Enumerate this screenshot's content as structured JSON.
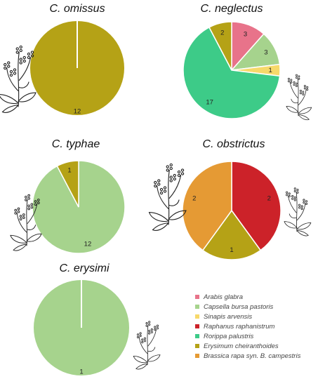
{
  "series_colors": {
    "Arabis glabra": "#e8738a",
    "Capsella bursa pastoris": "#a6d38d",
    "Sinapis arvensis": "#f7d96a",
    "Raphanus raphanistrum": "#cc2229",
    "Rorippa palustris": "#3dcb88",
    "Erysimum cheiranthoides": "#b5a216",
    "Brassica rapa syn. B. campestris": "#e59a34"
  },
  "legend": [
    "Arabis glabra",
    "Capsella bursa pastoris",
    "Sinapis arvensis",
    "Raphanus raphanistrum",
    "Rorippa palustris",
    "Erysimum cheiranthoides",
    "Brassica rapa syn. B. campestris"
  ],
  "plant_icon": "plant-sketch-icon",
  "chart_data": [
    {
      "type": "pie",
      "title": "C. omissus",
      "slices": [
        {
          "category": "Erysimum cheiranthoides",
          "value": 12
        }
      ]
    },
    {
      "type": "pie",
      "title": "C. neglectus",
      "slices": [
        {
          "category": "Arabis glabra",
          "value": 3
        },
        {
          "category": "Capsella bursa pastoris",
          "value": 3
        },
        {
          "category": "Sinapis arvensis",
          "value": 1
        },
        {
          "category": "Rorippa palustris",
          "value": 17
        },
        {
          "category": "Erysimum cheiranthoides",
          "value": 2
        }
      ]
    },
    {
      "type": "pie",
      "title": "C. typhae",
      "slices": [
        {
          "category": "Capsella bursa pastoris",
          "value": 12
        },
        {
          "category": "Erysimum cheiranthoides",
          "value": 1
        }
      ]
    },
    {
      "type": "pie",
      "title": "C. obstrictus",
      "slices": [
        {
          "category": "Raphanus raphanistrum",
          "value": 2
        },
        {
          "category": "Erysimum cheiranthoides",
          "value": 1
        },
        {
          "category": "Brassica rapa syn. B. campestris",
          "value": 2
        }
      ]
    },
    {
      "type": "pie",
      "title": "C. erysimi",
      "slices": [
        {
          "category": "Capsella bursa pastoris",
          "value": 1
        }
      ]
    }
  ]
}
